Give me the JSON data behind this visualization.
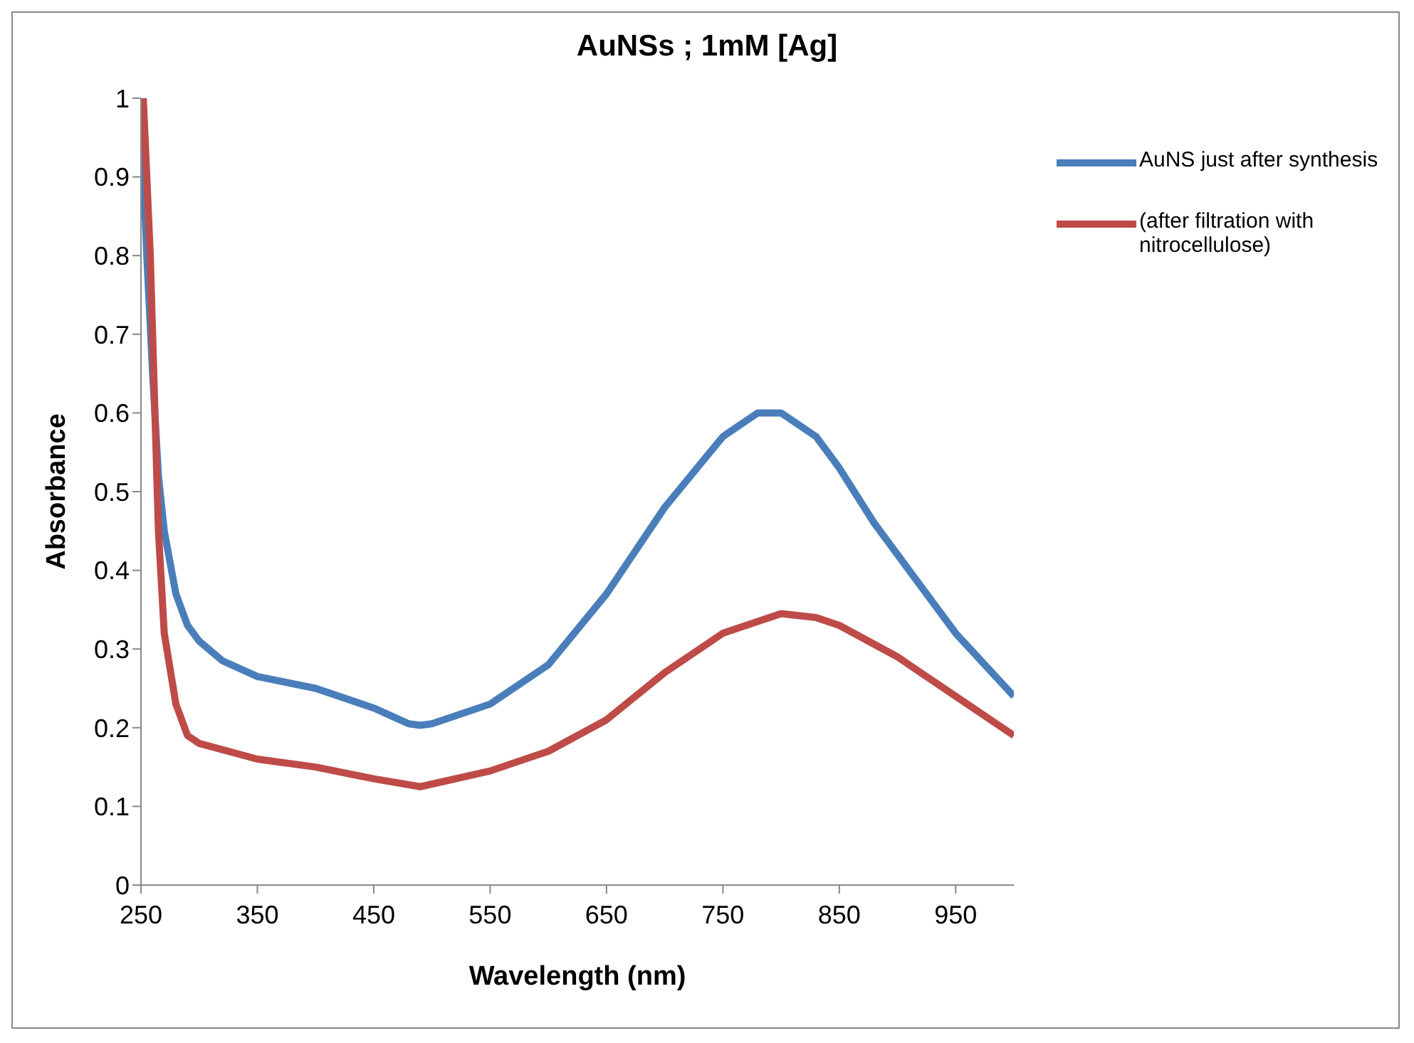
{
  "chart_data": {
    "type": "line",
    "title": "AuNSs ; 1mM [Ag]",
    "xlabel": "Wavelength (nm)",
    "ylabel": "Absorbance",
    "xlim": [
      250,
      1000
    ],
    "xticks": [
      250,
      350,
      450,
      550,
      650,
      750,
      850,
      950
    ],
    "ylim": [
      0,
      1
    ],
    "yticks": [
      0,
      0.1,
      0.2,
      0.3,
      0.4,
      0.5,
      0.6,
      0.7,
      0.8,
      0.9,
      1
    ],
    "grid": false,
    "legend": "top right",
    "marker": "none",
    "line_style": "solid",
    "series": [
      {
        "name": "AuNS just after synthesis",
        "color": "#4a7ebb",
        "x": [
          251,
          255,
          260,
          265,
          270,
          280,
          290,
          300,
          320,
          350,
          400,
          450,
          480,
          490,
          500,
          550,
          600,
          650,
          700,
          750,
          780,
          800,
          830,
          850,
          880,
          900,
          950,
          1000
        ],
        "values": [
          0.95,
          0.8,
          0.65,
          0.52,
          0.45,
          0.37,
          0.33,
          0.31,
          0.285,
          0.265,
          0.25,
          0.225,
          0.205,
          0.203,
          0.205,
          0.23,
          0.28,
          0.37,
          0.48,
          0.57,
          0.6,
          0.6,
          0.57,
          0.53,
          0.46,
          0.42,
          0.32,
          0.24
        ]
      },
      {
        "name": "(after filtration with nitrocellulose)",
        "color": "#be4b48",
        "x": [
          252,
          258,
          262,
          265,
          270,
          280,
          290,
          300,
          350,
          400,
          450,
          490,
          550,
          600,
          650,
          700,
          750,
          800,
          830,
          850,
          900,
          950,
          1000
        ],
        "values": [
          1,
          0.8,
          0.6,
          0.45,
          0.32,
          0.23,
          0.19,
          0.18,
          0.16,
          0.15,
          0.135,
          0.125,
          0.145,
          0.17,
          0.21,
          0.27,
          0.32,
          0.345,
          0.34,
          0.33,
          0.29,
          0.24,
          0.19
        ]
      }
    ]
  }
}
